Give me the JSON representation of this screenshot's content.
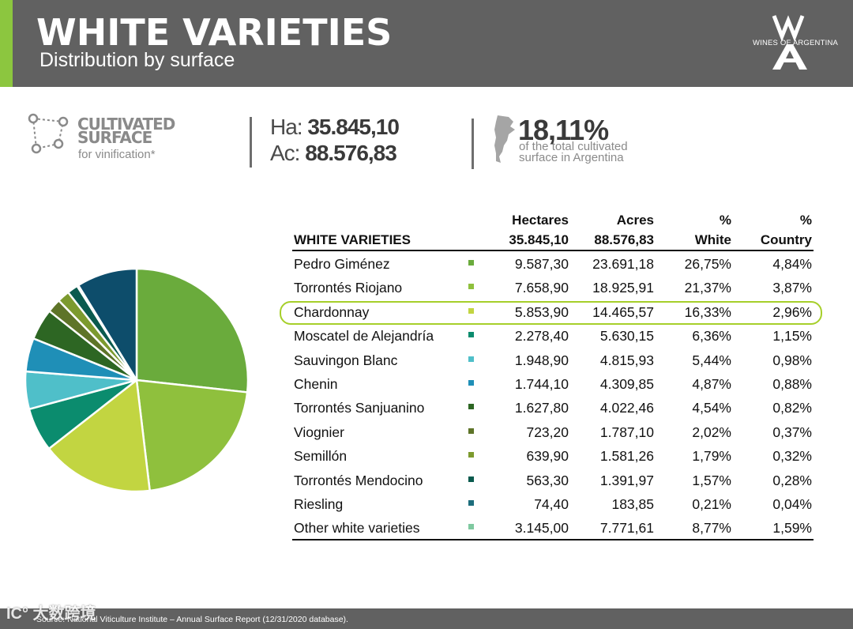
{
  "header": {
    "title": "WHITE VARIETIES",
    "subtitle": "Distribution by surface",
    "logo_text": "WINES OF ARGENTINA"
  },
  "stats": {
    "surface_title_1": "CULTIVATED",
    "surface_title_2": "SURFACE",
    "surface_sub": "for vinification*",
    "ha_label": "Ha:",
    "ha_value": "35.845,10",
    "ac_label": "Ac:",
    "ac_value": "88.576,83",
    "pct_value": "18,11%",
    "pct_sub_1": "of the total cultivated",
    "pct_sub_2": "surface in Argentina"
  },
  "table": {
    "header": {
      "variety": "WHITE VARIETIES",
      "hectares": "Hectares",
      "hectares_total": "35.845,10",
      "acres": "Acres",
      "acres_total": "88.576,83",
      "pct_white_1": "%",
      "pct_white_2": "White",
      "pct_country_1": "%",
      "pct_country_2": "Country"
    },
    "rows": [
      {
        "name": "Pedro Giménez",
        "hectares": "9.587,30",
        "acres": "23.691,18",
        "pct_white": "26,75%",
        "pct_country": "4,84%"
      },
      {
        "name": "Torrontés Riojano",
        "hectares": "7.658,90",
        "acres": "18.925,91",
        "pct_white": "21,37%",
        "pct_country": "3,87%"
      },
      {
        "name": "Chardonnay",
        "hectares": "5.853,90",
        "acres": "14.465,57",
        "pct_white": "16,33%",
        "pct_country": "2,96%"
      },
      {
        "name": "Moscatel de Alejandría",
        "hectares": "2.278,40",
        "acres": "5.630,15",
        "pct_white": "6,36%",
        "pct_country": "1,15%"
      },
      {
        "name": "Sauvingon Blanc",
        "hectares": "1.948,90",
        "acres": "4.815,93",
        "pct_white": "5,44%",
        "pct_country": "0,98%"
      },
      {
        "name": "Chenin",
        "hectares": "1.744,10",
        "acres": "4.309,85",
        "pct_white": "4,87%",
        "pct_country": "0,88%"
      },
      {
        "name": "Torrontés Sanjuanino",
        "hectares": "1.627,80",
        "acres": "4.022,46",
        "pct_white": "4,54%",
        "pct_country": "0,82%"
      },
      {
        "name": "Viognier",
        "hectares": "723,20",
        "acres": "1.787,10",
        "pct_white": "2,02%",
        "pct_country": "0,37%"
      },
      {
        "name": "Semillón",
        "hectares": "639,90",
        "acres": "1.581,26",
        "pct_white": "1,79%",
        "pct_country": "0,32%"
      },
      {
        "name": "Torrontés Mendocino",
        "hectares": "563,30",
        "acres": "1.391,97",
        "pct_white": "1,57%",
        "pct_country": "0,28%"
      },
      {
        "name": "Riesling",
        "hectares": "74,40",
        "acres": "183,85",
        "pct_white": "0,21%",
        "pct_country": "0,04%"
      },
      {
        "name": "Other white varieties",
        "hectares": "3.145,00",
        "acres": "7.771,61",
        "pct_white": "8,77%",
        "pct_country": "1,59%"
      }
    ]
  },
  "chart_data": {
    "type": "pie",
    "categories": [
      "Pedro Giménez",
      "Torrontés Riojano",
      "Chardonnay",
      "Moscatel de Alejandría",
      "Sauvingon Blanc",
      "Chenin",
      "Torrontés Sanjuanino",
      "Viognier",
      "Semillón",
      "Torrontés Mendocino",
      "Riesling",
      "Other white varieties"
    ],
    "values": [
      9587.3,
      7658.9,
      5853.9,
      2278.4,
      1948.9,
      1744.1,
      1627.8,
      723.2,
      639.9,
      563.3,
      74.4,
      3145.0
    ],
    "colors": [
      "#6aab3c",
      "#8fc03d",
      "#c2d541",
      "#0b8c6e",
      "#4fbfc9",
      "#1f8fb7",
      "#2d6623",
      "#5e7428",
      "#7c9a2e",
      "#0a5a4e",
      "#1d6d7c",
      "#0d4d6b"
    ],
    "legend_colors": [
      "#6aab3c",
      "#8fc03d",
      "#c2d541",
      "#0b8c6e",
      "#4fbfc9",
      "#1f8fb7",
      "#2d6623",
      "#5e7428",
      "#7c9a2e",
      "#0a5a4e",
      "#1d6d7c",
      "#7fc9a0"
    ],
    "highlight": "Chardonnay",
    "highlight_color": "#a6cf2a"
  },
  "footer": {
    "source": "Source: National Viticulture Institute – Annual Surface Report (12/31/2020 database).",
    "watermark": "IC° 大数跨境"
  },
  "colors": {
    "header_bg": "#616161",
    "accent": "#8cc63f"
  }
}
